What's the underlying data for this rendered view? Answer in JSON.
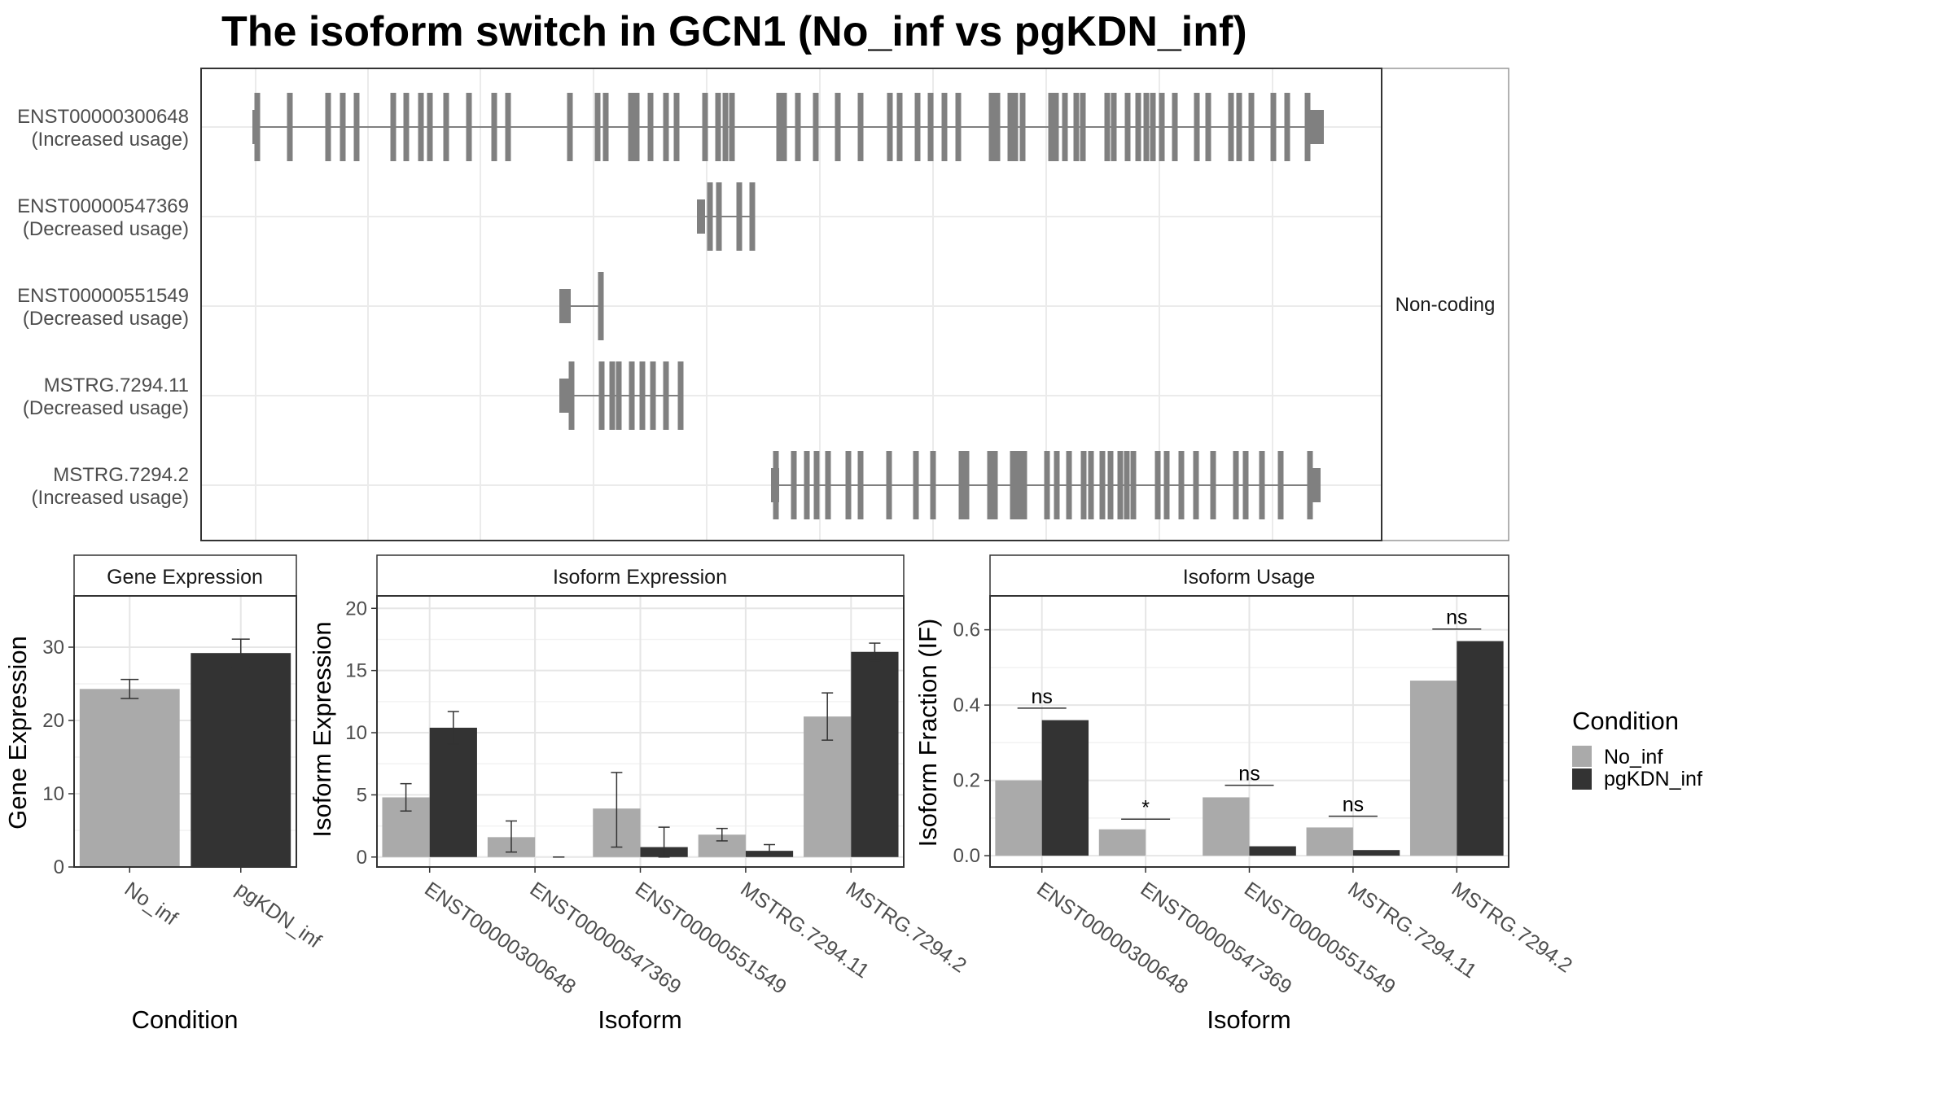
{
  "title": "The isoform switch in GCN1 (No_inf vs pgKDN_inf)",
  "colors": {
    "No_inf": "#aaaaaa",
    "pgKDN_inf": "#333333",
    "exon": "#808080"
  },
  "structure": {
    "strip_label": "Non-coding",
    "transcripts": [
      {
        "name": "ENST00000300648",
        "label": "(Increased usage)"
      },
      {
        "name": "ENST00000547369",
        "label": "(Decreased usage)"
      },
      {
        "name": "ENST00000551549",
        "label": "(Decreased usage)"
      },
      {
        "name": "MSTRG.7294.11",
        "label": "(Decreased usage)"
      },
      {
        "name": "MSTRG.7294.2",
        "label": "(Increased usage)"
      }
    ]
  },
  "legend": {
    "title": "Condition",
    "items": [
      "No_inf",
      "pgKDN_inf"
    ]
  },
  "chart_data": [
    {
      "type": "bar",
      "title": "Gene Expression",
      "xlabel": "Condition",
      "ylabel": "Gene Expression",
      "categories": [
        "No_inf",
        "pgKDN_inf"
      ],
      "values": [
        24.3,
        29.2
      ],
      "errors": [
        [
          23.0,
          25.6
        ],
        [
          27.3,
          31.1
        ]
      ],
      "ylim": [
        0,
        37
      ],
      "yticks": [
        0,
        10,
        20,
        30
      ],
      "grid": true
    },
    {
      "type": "bar",
      "title": "Isoform Expression",
      "xlabel": "Isoform",
      "ylabel": "Isoform Expression",
      "categories": [
        "ENST00000300648",
        "ENST00000547369",
        "ENST00000551549",
        "MSTRG.7294.11",
        "MSTRG.7294.2"
      ],
      "series": [
        {
          "name": "No_inf",
          "values": [
            4.8,
            1.6,
            3.9,
            1.8,
            11.3
          ],
          "errors": [
            [
              3.7,
              5.9
            ],
            [
              0.4,
              2.9
            ],
            [
              0.8,
              6.8
            ],
            [
              1.3,
              2.3
            ],
            [
              9.4,
              13.2
            ]
          ]
        },
        {
          "name": "pgKDN_inf",
          "values": [
            10.4,
            0,
            0.8,
            0.5,
            16.5
          ],
          "errors": [
            [
              9.1,
              11.7
            ],
            [
              0,
              0
            ],
            [
              0,
              2.4
            ],
            [
              0.1,
              1.0
            ],
            [
              15.8,
              17.2
            ]
          ]
        }
      ],
      "ylim": [
        -0.8,
        21
      ],
      "yticks": [
        0,
        5,
        10,
        15,
        20
      ],
      "grid": true
    },
    {
      "type": "bar",
      "title": "Isoform Usage",
      "xlabel": "Isoform",
      "ylabel": "Isoform Fraction (IF)",
      "categories": [
        "ENST00000300648",
        "ENST00000547369",
        "ENST00000551549",
        "MSTRG.7294.11",
        "MSTRG.7294.2"
      ],
      "series": [
        {
          "name": "No_inf",
          "values": [
            0.2,
            0.07,
            0.155,
            0.075,
            0.465
          ]
        },
        {
          "name": "pgKDN_inf",
          "values": [
            0.36,
            0,
            0.025,
            0.015,
            0.57
          ]
        }
      ],
      "significance": [
        {
          "label": "ns",
          "y": 0.392
        },
        {
          "label": "*",
          "y": 0.097
        },
        {
          "label": "ns",
          "y": 0.187
        },
        {
          "label": "ns",
          "y": 0.105
        },
        {
          "label": "ns",
          "y": 0.602
        }
      ],
      "ylim": [
        -0.03,
        0.69
      ],
      "yticks": [
        0.0,
        0.2,
        0.4,
        0.6
      ],
      "ytick_labels": [
        "0.0",
        "0.2",
        "0.4",
        "0.6"
      ],
      "grid": true
    }
  ]
}
